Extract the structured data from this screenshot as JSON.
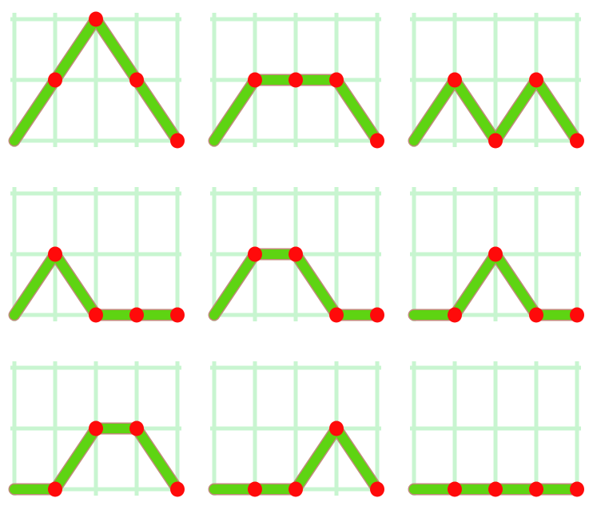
{
  "colors": {
    "background": "#ffffff",
    "grid": "#c8f5d0",
    "path": "#5ed412",
    "path_edge": "#c08a7a",
    "point": "#ff0a0a"
  },
  "grid": {
    "columns": 4,
    "rows": 2
  },
  "panels": [
    {
      "levels": [
        0,
        1,
        2,
        1,
        0
      ]
    },
    {
      "levels": [
        0,
        1,
        1,
        1,
        0
      ]
    },
    {
      "levels": [
        0,
        1,
        0,
        1,
        0
      ]
    },
    {
      "levels": [
        0,
        1,
        0,
        0,
        0
      ]
    },
    {
      "levels": [
        0,
        1,
        1,
        0,
        0
      ]
    },
    {
      "levels": [
        0,
        0,
        1,
        0,
        0
      ]
    },
    {
      "levels": [
        0,
        0,
        1,
        1,
        0
      ]
    },
    {
      "levels": [
        0,
        0,
        0,
        1,
        0
      ]
    },
    {
      "levels": [
        0,
        0,
        0,
        0,
        0
      ]
    }
  ]
}
